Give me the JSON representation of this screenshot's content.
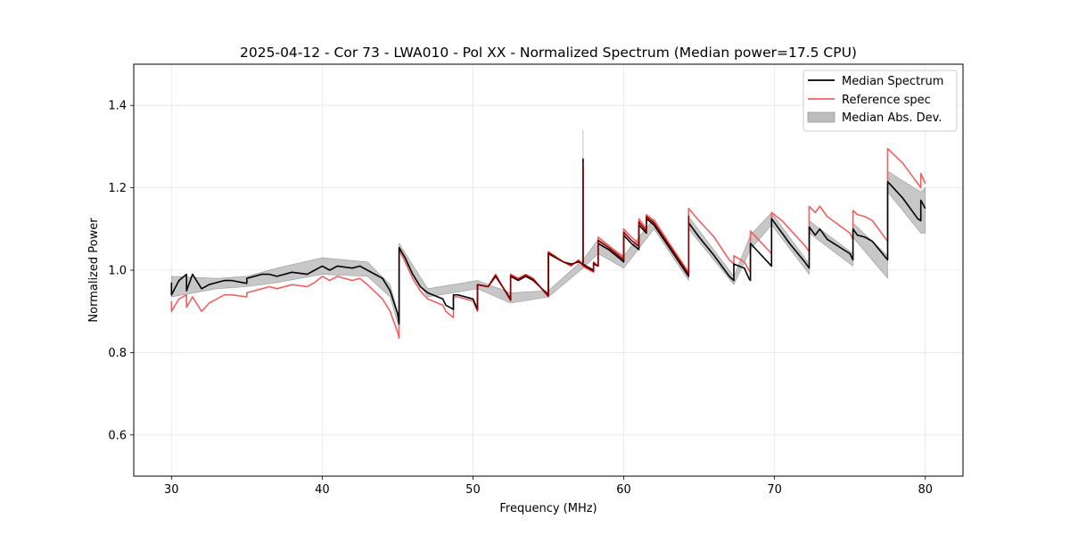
{
  "chart_data": {
    "type": "line",
    "title": "2025-04-12 - Cor 73 - LWA010 - Pol XX - Normalized Spectrum (Median power=17.5 CPU)",
    "xlabel": "Frequency (MHz)",
    "ylabel": "Normalized Power",
    "xlim": [
      27.5,
      82.5
    ],
    "ylim": [
      0.5,
      1.5
    ],
    "xticks": [
      30,
      40,
      50,
      60,
      70,
      80
    ],
    "yticks": [
      0.6,
      0.8,
      1.0,
      1.2,
      1.4
    ],
    "xtick_labels": [
      "30",
      "40",
      "50",
      "60",
      "70",
      "80"
    ],
    "ytick_labels": [
      "0.6",
      "0.8",
      "1.0",
      "1.2",
      "1.4"
    ],
    "grid": true,
    "legend_position": "top-right",
    "legend": [
      "Median Spectrum",
      "Reference spec",
      "Median Abs. Dev."
    ],
    "colors": {
      "median": "#000000",
      "reference": "#f06060",
      "mad": "#bdbdbd",
      "overlap": "#8b0000"
    },
    "series": [
      {
        "name": "Median Spectrum",
        "x": [
          30.0,
          30.0,
          30.5,
          31.0,
          31.0,
          31.4,
          32.0,
          32.5,
          33.0,
          33.5,
          34.0,
          35.0,
          35.0,
          36.0,
          36.5,
          37.0,
          38.0,
          39.0,
          39.5,
          40.0,
          40.5,
          41.0,
          42.0,
          42.5,
          43.0,
          44.0,
          44.5,
          45.0,
          45.1,
          45.1,
          45.5,
          46.0,
          46.5,
          47.0,
          48.0,
          48.2,
          48.7,
          48.7,
          49.0,
          50.0,
          50.3,
          50.3,
          51.0,
          51.5,
          52.5,
          52.5,
          53.0,
          53.5,
          54.0,
          55.0,
          55.0,
          56.0,
          56.5,
          57.0,
          57.3,
          57.3,
          57.3,
          57.5,
          58.0,
          58.0,
          58.3,
          58.3,
          59.0,
          59.5,
          60.0,
          60.0,
          60.5,
          61.0,
          61.0,
          61.5,
          61.5,
          62.0,
          64.3,
          64.3,
          65.0,
          66.0,
          67.0,
          67.3,
          67.3,
          68.0,
          68.3,
          68.4,
          68.4,
          69.8,
          69.8,
          70.5,
          71.0,
          72.0,
          72.3,
          72.3,
          72.7,
          73.0,
          73.5,
          75.0,
          75.2,
          75.2,
          75.5,
          76.0,
          76.5,
          77.5,
          77.5,
          78.5,
          79.5,
          79.7,
          79.7,
          80.0
        ],
        "y": [
          0.97,
          0.94,
          0.975,
          0.99,
          0.95,
          0.99,
          0.955,
          0.965,
          0.97,
          0.975,
          0.975,
          0.968,
          0.98,
          0.99,
          0.99,
          0.985,
          0.995,
          0.99,
          1.0,
          1.01,
          1.0,
          1.01,
          1.005,
          1.01,
          1.0,
          0.98,
          0.95,
          0.895,
          0.87,
          1.055,
          1.03,
          0.99,
          0.96,
          0.945,
          0.93,
          0.915,
          0.905,
          0.94,
          0.94,
          0.93,
          0.905,
          0.965,
          0.96,
          0.985,
          0.93,
          0.985,
          0.975,
          0.985,
          0.975,
          0.94,
          1.04,
          1.02,
          1.015,
          1.02,
          1.015,
          1.27,
          1.015,
          1.01,
          1.0,
          1.015,
          1.01,
          1.065,
          1.05,
          1.035,
          1.02,
          1.085,
          1.065,
          1.05,
          1.11,
          1.09,
          1.125,
          1.11,
          0.985,
          1.115,
          1.08,
          1.035,
          0.985,
          0.975,
          1.015,
          1.005,
          0.98,
          0.975,
          1.065,
          1.01,
          1.125,
          1.09,
          1.065,
          1.02,
          1.005,
          1.105,
          1.085,
          1.1,
          1.075,
          1.04,
          1.025,
          1.1,
          1.085,
          1.08,
          1.07,
          1.025,
          1.215,
          1.175,
          1.125,
          1.12,
          1.17,
          1.15
        ]
      },
      {
        "name": "Reference spec",
        "x": [
          30.0,
          30.0,
          30.5,
          31.0,
          31.0,
          31.4,
          32.0,
          32.5,
          33.0,
          33.5,
          34.0,
          35.0,
          35.0,
          36.0,
          36.5,
          37.0,
          38.0,
          39.0,
          39.5,
          40.0,
          40.5,
          41.0,
          42.0,
          42.5,
          43.0,
          44.0,
          44.5,
          45.0,
          45.1,
          45.1,
          45.5,
          46.0,
          46.5,
          47.0,
          48.0,
          48.2,
          48.7,
          48.7,
          49.0,
          50.0,
          50.3,
          50.3,
          51.0,
          51.5,
          52.5,
          52.5,
          53.0,
          53.5,
          54.0,
          55.0,
          55.0,
          56.0,
          56.5,
          57.0,
          57.3,
          57.3,
          57.3,
          57.5,
          58.0,
          58.0,
          58.3,
          58.3,
          59.0,
          59.5,
          60.0,
          60.0,
          60.5,
          61.0,
          61.0,
          61.5,
          61.5,
          62.0,
          64.3,
          64.3,
          65.0,
          66.0,
          67.0,
          67.3,
          67.3,
          68.0,
          68.3,
          68.4,
          68.4,
          69.8,
          69.8,
          70.5,
          71.0,
          72.0,
          72.3,
          72.3,
          72.7,
          73.0,
          73.5,
          75.0,
          75.2,
          75.2,
          75.5,
          76.0,
          76.5,
          77.5,
          77.5,
          78.5,
          79.5,
          79.7,
          79.7,
          80.0
        ],
        "y": [
          0.925,
          0.9,
          0.93,
          0.94,
          0.91,
          0.935,
          0.9,
          0.92,
          0.93,
          0.94,
          0.94,
          0.935,
          0.945,
          0.955,
          0.96,
          0.955,
          0.965,
          0.96,
          0.97,
          0.985,
          0.975,
          0.985,
          0.975,
          0.98,
          0.965,
          0.93,
          0.9,
          0.85,
          0.835,
          1.05,
          1.02,
          0.98,
          0.95,
          0.93,
          0.915,
          0.9,
          0.885,
          0.935,
          0.935,
          0.925,
          0.9,
          0.965,
          0.96,
          0.99,
          0.925,
          0.99,
          0.98,
          0.99,
          0.98,
          0.935,
          1.045,
          1.02,
          1.01,
          1.025,
          1.01,
          1.245,
          1.01,
          1.005,
          0.995,
          1.02,
          1.01,
          1.08,
          1.06,
          1.045,
          1.03,
          1.1,
          1.08,
          1.065,
          1.125,
          1.1,
          1.135,
          1.12,
          0.995,
          1.15,
          1.12,
          1.08,
          1.025,
          1.015,
          1.035,
          1.02,
          1.0,
          0.995,
          1.095,
          1.04,
          1.14,
          1.12,
          1.1,
          1.06,
          1.045,
          1.155,
          1.14,
          1.155,
          1.13,
          1.09,
          1.075,
          1.145,
          1.135,
          1.13,
          1.12,
          1.07,
          1.295,
          1.26,
          1.21,
          1.2,
          1.235,
          1.21
        ]
      }
    ],
    "mad_band": {
      "name": "Median Abs. Dev.",
      "x": [
        30.0,
        33.0,
        35.0,
        37.0,
        40.0,
        43.0,
        44.5,
        45.1,
        45.1,
        47.0,
        50.3,
        52.5,
        55.0,
        57.3,
        57.3,
        57.3,
        58.3,
        60.0,
        62.0,
        64.3,
        64.3,
        67.3,
        68.4,
        69.8,
        72.3,
        72.3,
        75.2,
        75.2,
        77.5,
        77.5,
        79.7,
        80.0
      ],
      "lower": [
        0.935,
        0.955,
        0.96,
        0.97,
        0.99,
        0.985,
        0.935,
        0.86,
        1.045,
        0.935,
        0.955,
        0.92,
        0.935,
        1.005,
        1.2,
        1.005,
        1.04,
        1.005,
        1.1,
        0.975,
        1.1,
        0.965,
        1.05,
        1.11,
        0.99,
        1.09,
        1.01,
        1.08,
        0.98,
        1.19,
        1.09,
        1.09
      ],
      "upper": [
        0.985,
        0.98,
        0.985,
        1.005,
        1.03,
        1.02,
        0.965,
        0.885,
        1.065,
        0.955,
        0.975,
        0.945,
        0.95,
        1.025,
        1.34,
        1.025,
        1.075,
        1.035,
        1.125,
        0.995,
        1.13,
        0.985,
        1.085,
        1.14,
        1.015,
        1.12,
        1.04,
        1.115,
        1.035,
        1.24,
        1.19,
        1.2
      ]
    }
  }
}
